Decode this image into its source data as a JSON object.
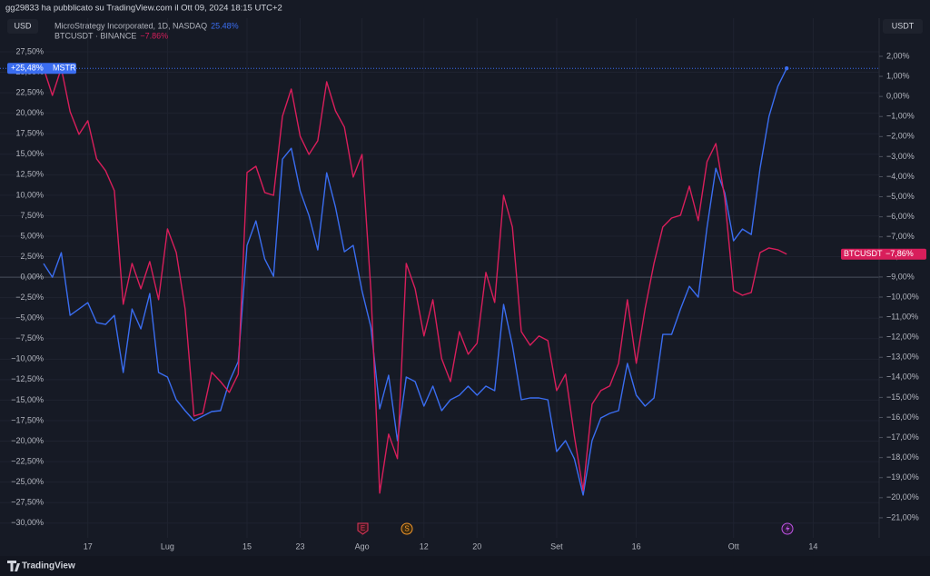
{
  "header": {
    "title": "gg29833 ha pubblicato su TradingView.com il Ott 09, 2024 18:15 UTC+2"
  },
  "footer": {
    "brand": "TradingView"
  },
  "chart_data": {
    "type": "line",
    "left_unit": "USD",
    "right_unit": "USDT",
    "categories": [
      null,
      null,
      null,
      null,
      null,
      "17",
      null,
      null,
      null,
      null,
      null,
      null,
      null,
      null,
      "Lug",
      null,
      null,
      null,
      null,
      null,
      null,
      null,
      null,
      "15",
      null,
      null,
      null,
      null,
      null,
      "23",
      null,
      null,
      null,
      null,
      null,
      null,
      "Ago",
      null,
      null,
      null,
      null,
      null,
      null,
      "12",
      null,
      null,
      null,
      null,
      null,
      "20",
      null,
      null,
      null,
      null,
      null,
      null,
      null,
      null,
      "Set",
      null,
      null,
      null,
      null,
      null,
      null,
      null,
      null,
      "16",
      null,
      null,
      null,
      null,
      null,
      null,
      null,
      null,
      null,
      null,
      "Ott",
      null,
      null,
      null,
      null,
      null,
      null,
      null,
      null,
      "14"
    ],
    "series": [
      {
        "name": "MicroStrategy Incorporated, 1D, NASDAQ",
        "color": "#3a6df0",
        "legend_value": "25.48%",
        "tag_label": "+25,48%",
        "tag_name": "MSTR",
        "values": [
          1.66,
          0,
          2.99,
          -4.65,
          -3.88,
          -3.1,
          -5.54,
          -5.76,
          -4.65,
          -11.63,
          -3.88,
          -6.31,
          -2.0,
          -11.63,
          -12.18,
          -14.95,
          -16.28,
          -17.5,
          -16.95,
          -16.39,
          -16.28,
          -12.74,
          -10.3,
          3.88,
          6.87,
          2.22,
          0.11,
          14.4,
          15.73,
          10.52,
          7.53,
          3.32,
          12.74,
          8.53,
          3.1,
          3.88,
          -1.66,
          -6.09,
          -16.06,
          -11.96,
          -19.94,
          -12.18,
          -12.74,
          -15.73,
          -13.29,
          -16.28,
          -14.95,
          -14.4,
          -13.29,
          -14.4,
          -13.29,
          -13.84,
          -3.32,
          -8.31,
          -14.95,
          -14.73,
          -14.73,
          -14.95,
          -21.27,
          -19.94,
          -22.15,
          -26.58,
          -19.94,
          -17.17,
          -16.61,
          -16.28,
          -10.52,
          -14.4,
          -15.73,
          -14.73,
          -6.98,
          -6.98,
          -3.88,
          -1.11,
          -2.44,
          6.09,
          13.29,
          10.3,
          4.43,
          5.87,
          5.21,
          13.29,
          19.61,
          23.26,
          25.48,
          null,
          null,
          null
        ]
      },
      {
        "name": "BTCUSDT · BINANCE",
        "color": "#d81e5b",
        "axis": "y2",
        "legend_value": "−7.86%",
        "tag_label": "−7,86%",
        "tag_name": "BTCUSDT",
        "values": [
          1.41,
          0.05,
          1.41,
          -0.76,
          -1.89,
          -1.21,
          -3.11,
          -3.7,
          -4.7,
          -10.36,
          -8.32,
          -9.59,
          -8.23,
          -10.13,
          -6.6,
          -7.78,
          -10.58,
          -15.93,
          -15.79,
          -13.75,
          -14.21,
          -14.75,
          -13.84,
          -3.79,
          -3.48,
          -4.79,
          -4.93,
          -0.99,
          0.37,
          -1.98,
          -2.89,
          -2.21,
          0.73,
          -0.72,
          -1.53,
          -4.02,
          -2.89,
          -9.68,
          -19.77,
          -16.83,
          -18.05,
          -8.32,
          -9.59,
          -11.94,
          -10.13,
          -13.07,
          -14.21,
          -11.72,
          -12.85,
          -12.3,
          -8.77,
          -10.27,
          -4.93,
          -6.51,
          -11.72,
          -12.4,
          -11.94,
          -12.17,
          -14.66,
          -13.84,
          -16.92,
          -19.64,
          -15.34,
          -14.66,
          -14.43,
          -13.3,
          -10.13,
          -13.3,
          -10.58,
          -8.32,
          -6.51,
          -6.06,
          -5.92,
          -4.47,
          -6.19,
          -3.25,
          -2.35,
          -5.06,
          -9.68,
          -9.91,
          -9.77,
          -7.78,
          -7.55,
          -7.64,
          -7.86,
          null,
          null,
          null
        ]
      }
    ],
    "ylim": [
      -31.8,
      31.6
    ],
    "yticks": [
      {
        "value": 27.5,
        "label": "27,50%"
      },
      {
        "value": 25,
        "label": "25,00%"
      },
      {
        "value": 22.5,
        "label": "22,50%"
      },
      {
        "value": 20,
        "label": "20,00%"
      },
      {
        "value": 17.5,
        "label": "17,50%"
      },
      {
        "value": 15,
        "label": "15,00%"
      },
      {
        "value": 12.5,
        "label": "12,50%"
      },
      {
        "value": 10,
        "label": "10,00%"
      },
      {
        "value": 7.5,
        "label": "7,50%"
      },
      {
        "value": 5,
        "label": "5,00%"
      },
      {
        "value": 2.5,
        "label": "2,50%"
      },
      {
        "value": 0,
        "label": "0,00%"
      },
      {
        "value": -2.5,
        "label": "−2,50%"
      },
      {
        "value": -5,
        "label": "−5,00%"
      },
      {
        "value": -7.5,
        "label": "−7,50%"
      },
      {
        "value": -10,
        "label": "−10,00%"
      },
      {
        "value": -12.5,
        "label": "−12,50%"
      },
      {
        "value": -15,
        "label": "−15,00%"
      },
      {
        "value": -17.5,
        "label": "−17,50%"
      },
      {
        "value": -20,
        "label": "−20,00%"
      },
      {
        "value": -22.5,
        "label": "−22,50%"
      },
      {
        "value": -25,
        "label": "−25,00%"
      },
      {
        "value": -27.5,
        "label": "−27,50%"
      },
      {
        "value": -30,
        "label": "−30,00%"
      }
    ],
    "y2lim": [
      -22,
      3.9
    ],
    "y2ticks": [
      {
        "value": 2,
        "label": "2,00%"
      },
      {
        "value": 1,
        "label": "1,00%"
      },
      {
        "value": 0,
        "label": "0,00%"
      },
      {
        "value": -1,
        "label": "−1,00%"
      },
      {
        "value": -2,
        "label": "−2,00%"
      },
      {
        "value": -3,
        "label": "−3,00%"
      },
      {
        "value": -4,
        "label": "−4,00%"
      },
      {
        "value": -5,
        "label": "−5,00%"
      },
      {
        "value": -6,
        "label": "−6,00%"
      },
      {
        "value": -7,
        "label": "−7,00%"
      },
      {
        "value": -8,
        "label": "−8,00%"
      },
      {
        "value": -9,
        "label": "−9,00%"
      },
      {
        "value": -10,
        "label": "−10,00%"
      },
      {
        "value": -11,
        "label": "−11,00%"
      },
      {
        "value": -12,
        "label": "−12,00%"
      },
      {
        "value": -13,
        "label": "−13,00%"
      },
      {
        "value": -14,
        "label": "−14,00%"
      },
      {
        "value": -15,
        "label": "−15,00%"
      },
      {
        "value": -16,
        "label": "−16,00%"
      },
      {
        "value": -17,
        "label": "−17,00%"
      },
      {
        "value": -18,
        "label": "−18,00%"
      },
      {
        "value": -19,
        "label": "−19,00%"
      },
      {
        "value": -20,
        "label": "−20,00%"
      },
      {
        "value": -21,
        "label": "−21,00%"
      }
    ],
    "grid": true,
    "annotations": [
      "E",
      "S"
    ]
  }
}
